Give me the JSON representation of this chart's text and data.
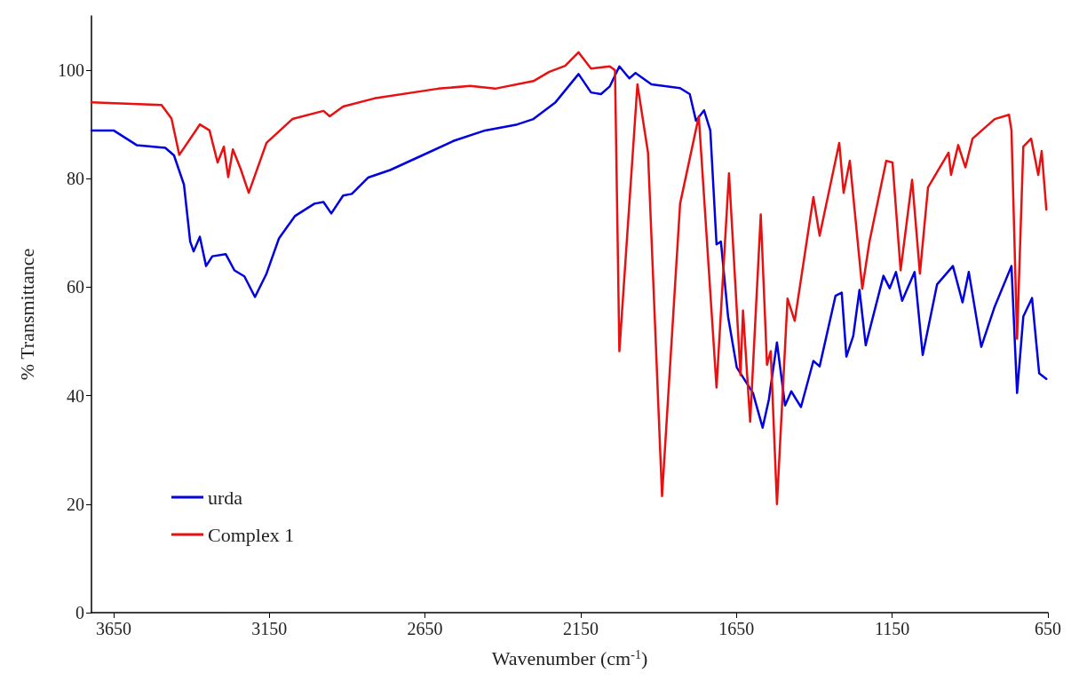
{
  "chart_data": {
    "type": "line",
    "xlabel": "Wavenumber (cm$^{-1}$)",
    "ylabel": "% Transmittance",
    "xlim": [
      3721,
      650
    ],
    "xticks": [
      3650,
      3150,
      2650,
      2150,
      1650,
      1150,
      650
    ],
    "ylim": [
      0,
      110
    ],
    "yticks": [
      0,
      20,
      40,
      60,
      80,
      100
    ],
    "grid": false,
    "legend": "bottom left",
    "marker": "none",
    "line_style": "solid",
    "series": [
      {
        "name": "urda",
        "color": "#0000e0",
        "x": [
          3721,
          3650,
          3576,
          3484,
          3456,
          3424,
          3404,
          3393,
          3373,
          3353,
          3333,
          3290,
          3262,
          3230,
          3196,
          3159,
          3119,
          3068,
          3005,
          2976,
          2951,
          2913,
          2885,
          2833,
          2762,
          2659,
          2557,
          2457,
          2354,
          2302,
          2231,
          2157,
          2117,
          2085,
          2057,
          2026,
          1994,
          1974,
          1923,
          1831,
          1800,
          1780,
          1754,
          1734,
          1714,
          1700,
          1677,
          1649,
          1597,
          1566,
          1546,
          1520,
          1494,
          1474,
          1443,
          1403,
          1383,
          1332,
          1312,
          1297,
          1275,
          1255,
          1235,
          1178,
          1158,
          1138,
          1118,
          1078,
          1052,
          1006,
          955,
          924,
          904,
          864,
          821,
          767,
          749,
          729,
          701,
          678,
          655
        ],
        "values": [
          88.9,
          88.9,
          86.2,
          85.7,
          84.3,
          78.9,
          68.4,
          66.6,
          69.3,
          63.9,
          65.7,
          66.1,
          63.1,
          62.0,
          58.2,
          62.5,
          69.0,
          73.1,
          75.4,
          75.7,
          73.6,
          76.9,
          77.2,
          80.2,
          81.6,
          84.3,
          87.0,
          88.9,
          90.0,
          91.0,
          94.1,
          99.3,
          95.9,
          95.6,
          97.0,
          100.7,
          98.5,
          99.5,
          97.4,
          96.7,
          95.6,
          90.7,
          92.6,
          88.9,
          67.9,
          68.4,
          54.6,
          45.2,
          40.5,
          34.1,
          39.3,
          49.8,
          38.2,
          40.8,
          37.9,
          46.4,
          45.4,
          58.4,
          59.0,
          47.2,
          51.0,
          59.5,
          49.3,
          62.1,
          59.8,
          62.8,
          57.5,
          62.8,
          47.5,
          60.5,
          63.9,
          57.2,
          62.8,
          49.0,
          56.4,
          63.9,
          40.5,
          54.6,
          58.0,
          44.1,
          43.1
        ]
      },
      {
        "name": "Complex 1",
        "color": "#e81010",
        "x": [
          3721,
          3496,
          3464,
          3439,
          3373,
          3342,
          3316,
          3296,
          3282,
          3267,
          3242,
          3216,
          3159,
          3076,
          2976,
          2956,
          2913,
          2813,
          2608,
          2505,
          2425,
          2302,
          2251,
          2200,
          2157,
          2117,
          2057,
          2040,
          2026,
          1968,
          1934,
          1889,
          1831,
          1771,
          1714,
          1674,
          1637,
          1629,
          1606,
          1572,
          1552,
          1540,
          1520,
          1486,
          1463,
          1403,
          1383,
          1320,
          1306,
          1286,
          1246,
          1223,
          1169,
          1149,
          1123,
          1086,
          1061,
          1035,
          969,
          961,
          938,
          915,
          892,
          821,
          775,
          767,
          749,
          729,
          704,
          681,
          670,
          655
        ],
        "values": [
          94.1,
          93.6,
          91.1,
          84.4,
          90.0,
          88.9,
          83.0,
          85.9,
          80.3,
          85.4,
          81.8,
          77.4,
          86.6,
          91.0,
          92.5,
          91.5,
          93.3,
          94.8,
          96.6,
          97.1,
          96.6,
          98.0,
          99.7,
          100.8,
          103.3,
          100.3,
          100.7,
          100.0,
          48.2,
          97.4,
          84.8,
          21.5,
          75.4,
          91.5,
          41.5,
          81.0,
          43.8,
          55.7,
          35.2,
          73.4,
          45.7,
          48.2,
          20.0,
          57.9,
          53.8,
          76.6,
          69.5,
          86.6,
          77.4,
          83.3,
          59.7,
          68.4,
          83.3,
          83.0,
          63.1,
          79.8,
          62.5,
          78.4,
          84.8,
          80.7,
          86.2,
          82.1,
          87.4,
          91.0,
          91.8,
          88.9,
          50.5,
          85.9,
          87.4,
          80.7,
          85.1,
          74.3
        ]
      }
    ]
  }
}
